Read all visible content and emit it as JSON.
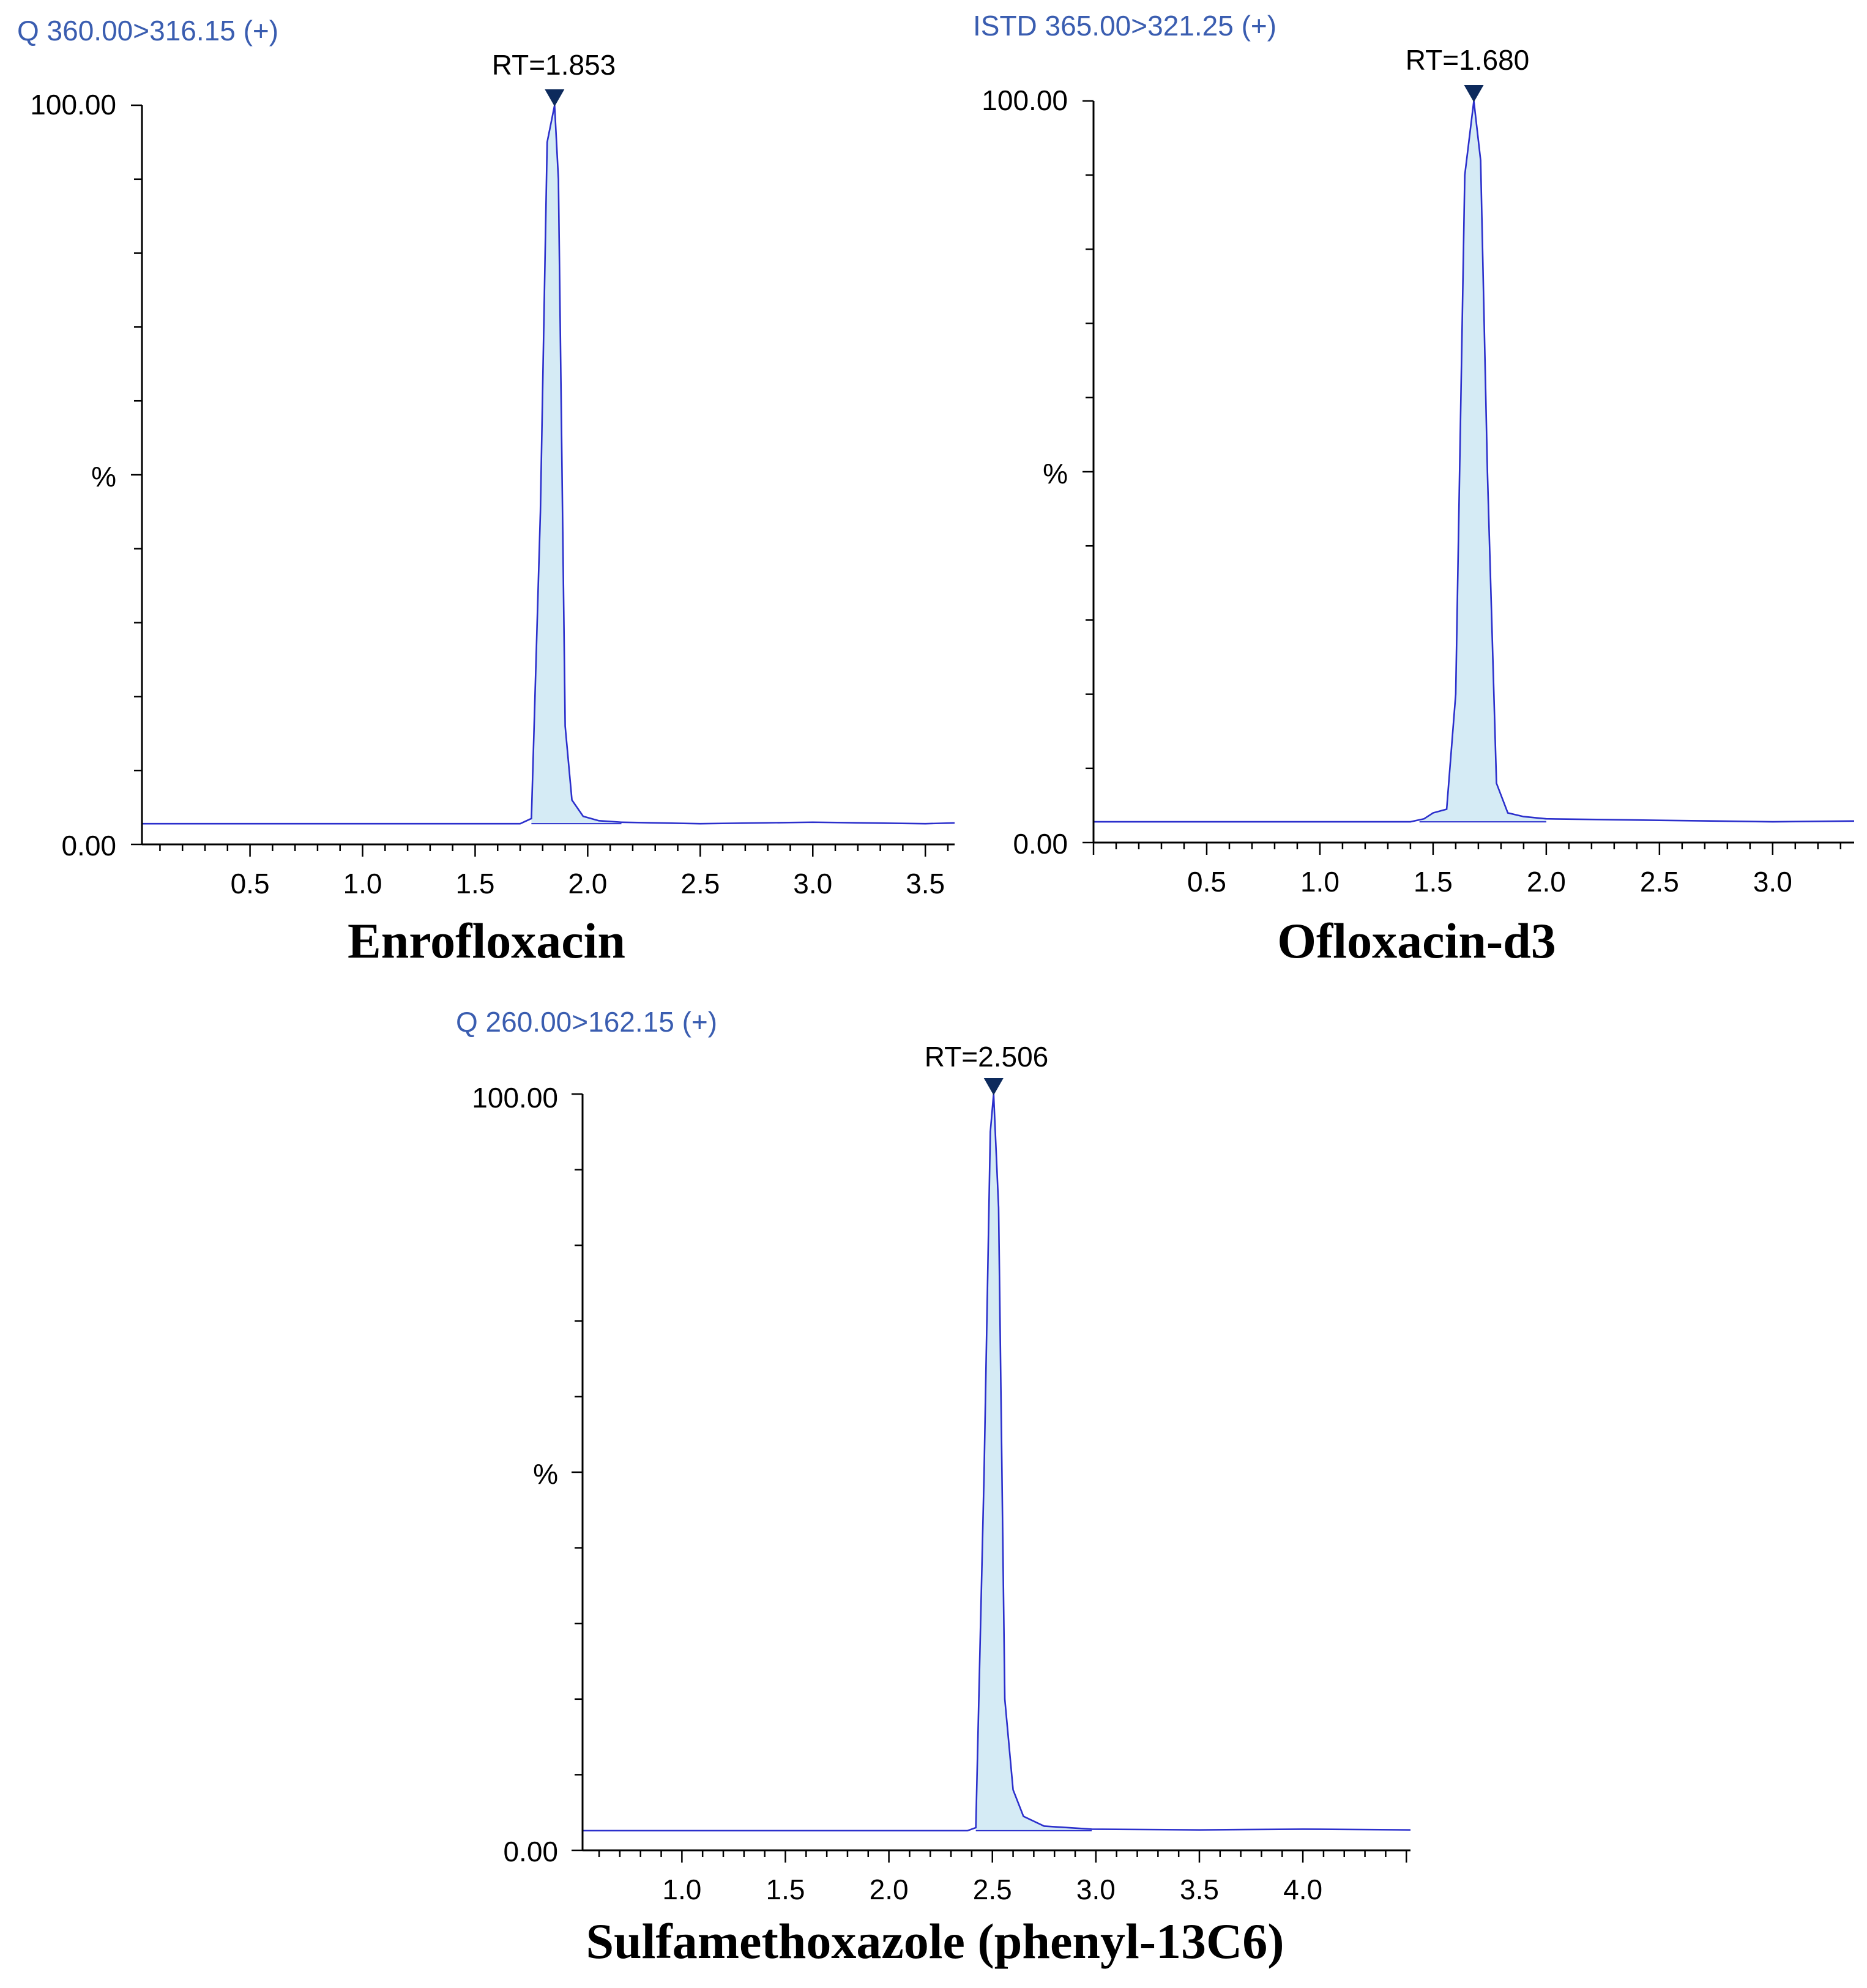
{
  "colors": {
    "mrm_label": "#3a5db0",
    "trace": "#2b2fcc",
    "peak_fill": "#d5ebf5",
    "marker": "#0d2a5c"
  },
  "chart_data": [
    {
      "type": "line",
      "mrm": "Q 360.00>316.15 (+)",
      "rt_label": "RT=1.853",
      "rt": 1.853,
      "compound": "Enrofloxacin",
      "ylabel": "%",
      "ytick_labels": [
        "100.00",
        "0.00"
      ],
      "ylim": [
        0,
        100
      ],
      "xlim": [
        0.02,
        3.63
      ],
      "xticks": [
        0.5,
        1.0,
        1.5,
        2.0,
        2.5,
        3.0,
        3.5
      ],
      "xtick_labels": [
        "0.5",
        "1.0",
        "1.5",
        "2.0",
        "2.5",
        "3.0",
        "3.5"
      ],
      "baseline": 2.8,
      "peak": {
        "start": 1.75,
        "end": 2.15,
        "apex": 1.853,
        "height": 100
      },
      "x": [
        0.02,
        1.7,
        1.75,
        1.79,
        1.82,
        1.853,
        1.87,
        1.9,
        1.93,
        1.98,
        2.05,
        2.15,
        2.5,
        3.0,
        3.5,
        3.63
      ],
      "y": [
        2.8,
        2.8,
        3.5,
        45,
        95,
        100,
        90,
        16,
        6,
        3.8,
        3.2,
        3.0,
        2.8,
        3.0,
        2.8,
        2.9
      ]
    },
    {
      "type": "line",
      "mrm": "ISTD 365.00>321.25 (+)",
      "rt_label": "RT=1.680",
      "rt": 1.68,
      "compound": "Ofloxacin-d3",
      "ylabel": "%",
      "ytick_labels": [
        "100.00",
        "0.00"
      ],
      "ylim": [
        0,
        100
      ],
      "xlim": [
        0.0,
        3.36
      ],
      "xticks": [
        0.5,
        1.0,
        1.5,
        2.0,
        2.5,
        3.0
      ],
      "xtick_labels": [
        "0.5",
        "1.0",
        "1.5",
        "2.0",
        "2.5",
        "3.0"
      ],
      "baseline": 2.8,
      "peak": {
        "start": 1.44,
        "end": 2.0,
        "apex": 1.68,
        "height": 100
      },
      "x": [
        0.0,
        1.4,
        1.46,
        1.5,
        1.56,
        1.6,
        1.64,
        1.68,
        1.71,
        1.74,
        1.78,
        1.83,
        1.9,
        2.0,
        2.5,
        3.0,
        3.36
      ],
      "y": [
        2.8,
        2.8,
        3.2,
        4.0,
        4.5,
        20,
        90,
        100,
        92,
        50,
        8,
        4.0,
        3.5,
        3.2,
        3.0,
        2.8,
        2.9
      ]
    },
    {
      "type": "line",
      "mrm": "Q 260.00>162.15 (+)",
      "rt_label": "RT=2.506",
      "rt": 2.506,
      "compound": "Sulfamethoxazole (phenyl-13C6)",
      "ylabel": "%",
      "ytick_labels": [
        "100.00",
        "0.00"
      ],
      "ylim": [
        0,
        100
      ],
      "xlim": [
        0.52,
        4.52
      ],
      "xticks": [
        1.0,
        1.5,
        2.0,
        2.5,
        3.0,
        3.5,
        4.0
      ],
      "xtick_labels": [
        "1.0",
        "1.5",
        "2.0",
        "2.5",
        "3.0",
        "3.5",
        "4.0"
      ],
      "baseline": 2.6,
      "peak": {
        "start": 2.42,
        "end": 2.98,
        "apex": 2.506,
        "height": 100
      },
      "x": [
        0.52,
        2.38,
        2.42,
        2.46,
        2.49,
        2.506,
        2.53,
        2.56,
        2.6,
        2.65,
        2.75,
        2.98,
        3.5,
        4.0,
        4.52
      ],
      "y": [
        2.6,
        2.6,
        3.0,
        50,
        95,
        100,
        85,
        20,
        8,
        4.5,
        3.2,
        2.8,
        2.7,
        2.8,
        2.7
      ]
    }
  ]
}
